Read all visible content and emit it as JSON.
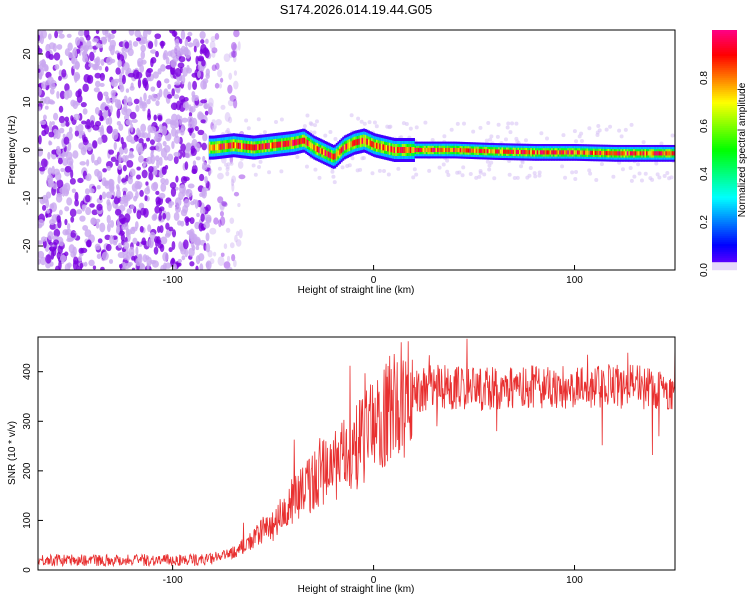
{
  "chart_data": [
    {
      "type": "heatmap",
      "title": "S174.2026.014.19.44.G05",
      "xlabel": "Height of straight line (km)",
      "ylabel": "Frequency (Hz)",
      "xlim": [
        -167,
        150
      ],
      "ylim": [
        -25,
        25
      ],
      "xticks": [
        -100,
        0,
        100
      ],
      "yticks": [
        -20,
        -10,
        0,
        10,
        20
      ],
      "colorbar": {
        "label": "Normalized spectral amplitude",
        "range": [
          0,
          1
        ],
        "ticks": [
          "0.0",
          "0.2",
          "0.4",
          "0.6",
          "0.8"
        ]
      },
      "ridge": {
        "x": [
          -80,
          -70,
          -60,
          -50,
          -40,
          -35,
          -30,
          -25,
          -20,
          -15,
          -10,
          -5,
          0,
          10,
          20,
          40,
          60,
          80,
          100,
          120,
          150
        ],
        "freq": [
          0.5,
          1,
          0.5,
          1,
          1.5,
          2,
          0.5,
          -0.5,
          -1.5,
          0.5,
          1.5,
          2,
          1,
          0,
          0,
          0,
          -0.3,
          -0.5,
          -0.5,
          -0.7,
          -0.7
        ]
      },
      "noise_region_x": [
        -167,
        -65
      ]
    },
    {
      "type": "line",
      "xlabel": "Height of straight line (km)",
      "ylabel": "SNR (10 * v/v)",
      "xlim": [
        -167,
        150
      ],
      "ylim": [
        0,
        470
      ],
      "xticks": [
        -100,
        0,
        100
      ],
      "yticks": [
        0,
        100,
        200,
        300,
        400
      ],
      "series": [
        {
          "name": "SNR",
          "color": "#e83030",
          "x": [
            -167,
            -150,
            -130,
            -110,
            -90,
            -80,
            -70,
            -60,
            -55,
            -50,
            -40,
            -30,
            -20,
            -10,
            0,
            10,
            20,
            30,
            50,
            70,
            90,
            110,
            130,
            150
          ],
          "y": [
            20,
            20,
            20,
            20,
            20,
            22,
            35,
            60,
            80,
            90,
            140,
            180,
            210,
            240,
            290,
            330,
            360,
            370,
            365,
            370,
            370,
            370,
            370,
            365
          ]
        }
      ]
    }
  ]
}
